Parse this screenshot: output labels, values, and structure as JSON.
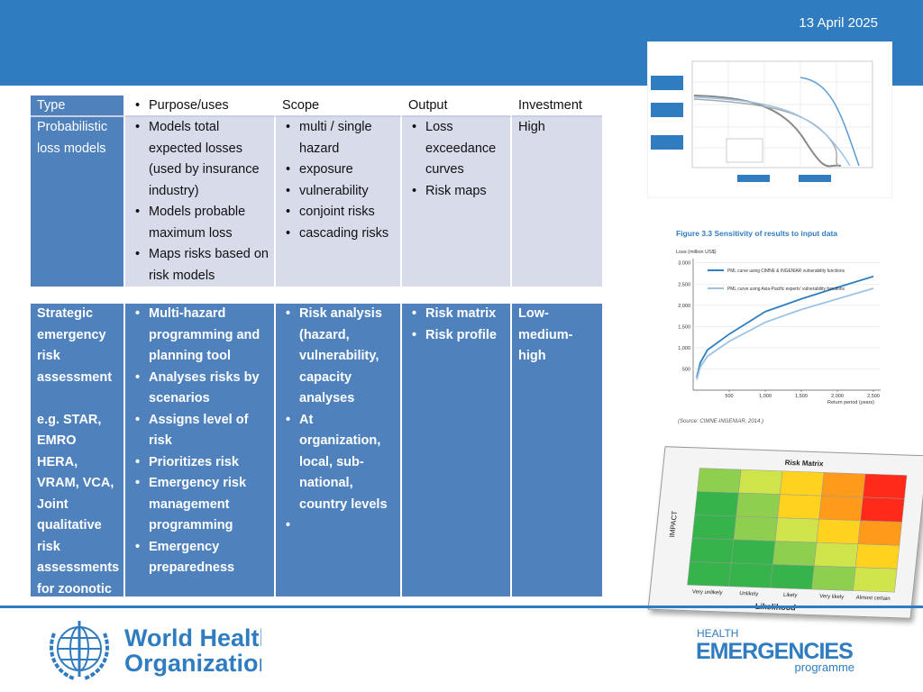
{
  "header": {
    "date": "13 April 2025"
  },
  "table1": {
    "header": [
      "Type",
      "Purpose/uses",
      "Scope",
      "Output",
      "Investment"
    ],
    "rows": [
      [
        "Probabilistic loss models",
        [
          "Models total expected losses (used by insurance industry)",
          "Models probable maximum loss",
          "Maps risks based on risk models"
        ],
        [
          "multi / single hazard",
          "exposure",
          "vulnerability",
          "conjoint risks",
          "cascading risks"
        ],
        [
          "Loss exceedance curves",
          "Risk maps"
        ],
        "High"
      ]
    ]
  },
  "table2": {
    "rows": [
      [
        [
          "Strategic emergency risk assessment",
          "e.g. STAR, EMRO HERA, VRAM, VCA, Joint qualitative risk assessments for zoonotic diseases"
        ],
        [
          "Multi-hazard programming and planning tool",
          "Analyses risks by scenarios",
          "Assigns level of risk",
          "Prioritizes risk",
          "Emergency risk management programming",
          "Emergency preparedness"
        ],
        [
          "Risk analysis (hazard, vulnerability, capacity analyses",
          "At organization, local, sub-national, country levels"
        ],
        [
          "Risk matrix",
          "Risk profile"
        ],
        "Low-medium-high"
      ]
    ]
  },
  "figure": {
    "title": "Figure 3.3  Sensitivity of results to input data",
    "y_label": "Loss (million US$)",
    "x_label": "Return period (years)",
    "source": "(Source: CIMNE-INGENIAR, 2014.)",
    "xlim": [
      0,
      2600
    ],
    "xticks": [
      {
        "value": 500,
        "label": "500"
      },
      {
        "value": 1000,
        "label": "1,000"
      },
      {
        "value": 1500,
        "label": "1,500"
      },
      {
        "value": 2000,
        "label": "2,000"
      },
      {
        "value": 2500,
        "label": "2,500"
      }
    ],
    "ylim": [
      0,
      3100
    ],
    "yticks": [
      {
        "value": 500,
        "label": "500"
      },
      {
        "value": 1000,
        "label": "1,000"
      },
      {
        "value": 1500,
        "label": "1,500"
      },
      {
        "value": 2000,
        "label": "2,000"
      },
      {
        "value": 2500,
        "label": "2,500"
      },
      {
        "value": 3000,
        "label": "3,000"
      }
    ],
    "x": [
      50,
      100,
      200,
      500,
      1000,
      1500,
      2000,
      2500
    ],
    "series": [
      {
        "name": "PML curve using CIMNE & INGENIAR vulnerability functions",
        "color": "#2f7fc1",
        "values": [
          300,
          650,
          950,
          1320,
          1850,
          2150,
          2420,
          2680
        ]
      },
      {
        "name": "PML curve using Asia-Pacific experts' vulnerability functions",
        "color": "#9cc3e6",
        "values": [
          250,
          550,
          800,
          1150,
          1600,
          1900,
          2150,
          2400
        ]
      }
    ]
  },
  "matrix": {
    "title": "Risk Matrix",
    "x_label": "Likelihood",
    "y_label": "IMPACT",
    "columns": [
      "Very unlikely",
      "Unlikely",
      "Likely",
      "Very likely",
      "Almost certain"
    ]
  },
  "footer": {
    "who": [
      "World Health",
      "Organization"
    ],
    "programme": [
      "HEALTH",
      "EMERGENCIES",
      "programme"
    ]
  }
}
